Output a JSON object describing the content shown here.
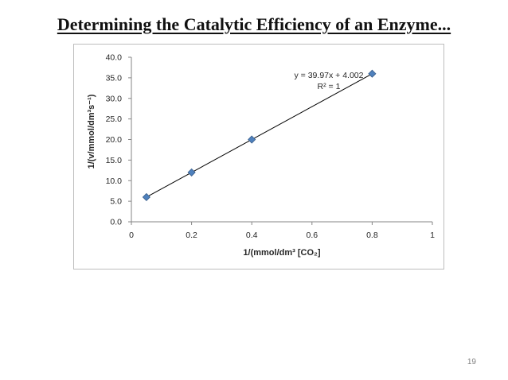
{
  "slide": {
    "title": "Determining the Catalytic Efficiency of an Enzyme...",
    "page_number": "19"
  },
  "colors": {
    "marker_fill": "#4f81bd",
    "marker_stroke": "#385d8a",
    "trendline": "#000000",
    "axis": "#868686",
    "text": "#262626"
  },
  "chart_data": {
    "type": "scatter",
    "title": "",
    "xlabel": "1/(mmol/dm³ [CO₂]",
    "ylabel": "1/(v/mmol/dm³s⁻¹)",
    "xlim": [
      0,
      1
    ],
    "ylim": [
      0,
      40
    ],
    "x_ticks": [
      0,
      0.2,
      0.4,
      0.6,
      0.8,
      1
    ],
    "x_tick_labels": [
      "0",
      "0.2",
      "0.4",
      "0.6",
      "0.8",
      "1"
    ],
    "y_ticks": [
      0,
      5,
      10,
      15,
      20,
      25,
      30,
      35,
      40
    ],
    "y_tick_labels": [
      "0.0",
      "5.0",
      "10.0",
      "15.0",
      "20.0",
      "25.0",
      "30.0",
      "35.0",
      "40.0"
    ],
    "grid": false,
    "legend": "none",
    "marker": "diamond",
    "x": [
      0.05,
      0.2,
      0.4,
      0.8
    ],
    "y": [
      6.0,
      12.0,
      20.0,
      36.0
    ],
    "trendline": {
      "type": "linear",
      "slope": 39.97,
      "intercept": 4.002,
      "x_range": [
        0.05,
        0.8
      ],
      "equation": "y = 39.97x + 4.002",
      "r2_label": "R² = 1"
    }
  }
}
